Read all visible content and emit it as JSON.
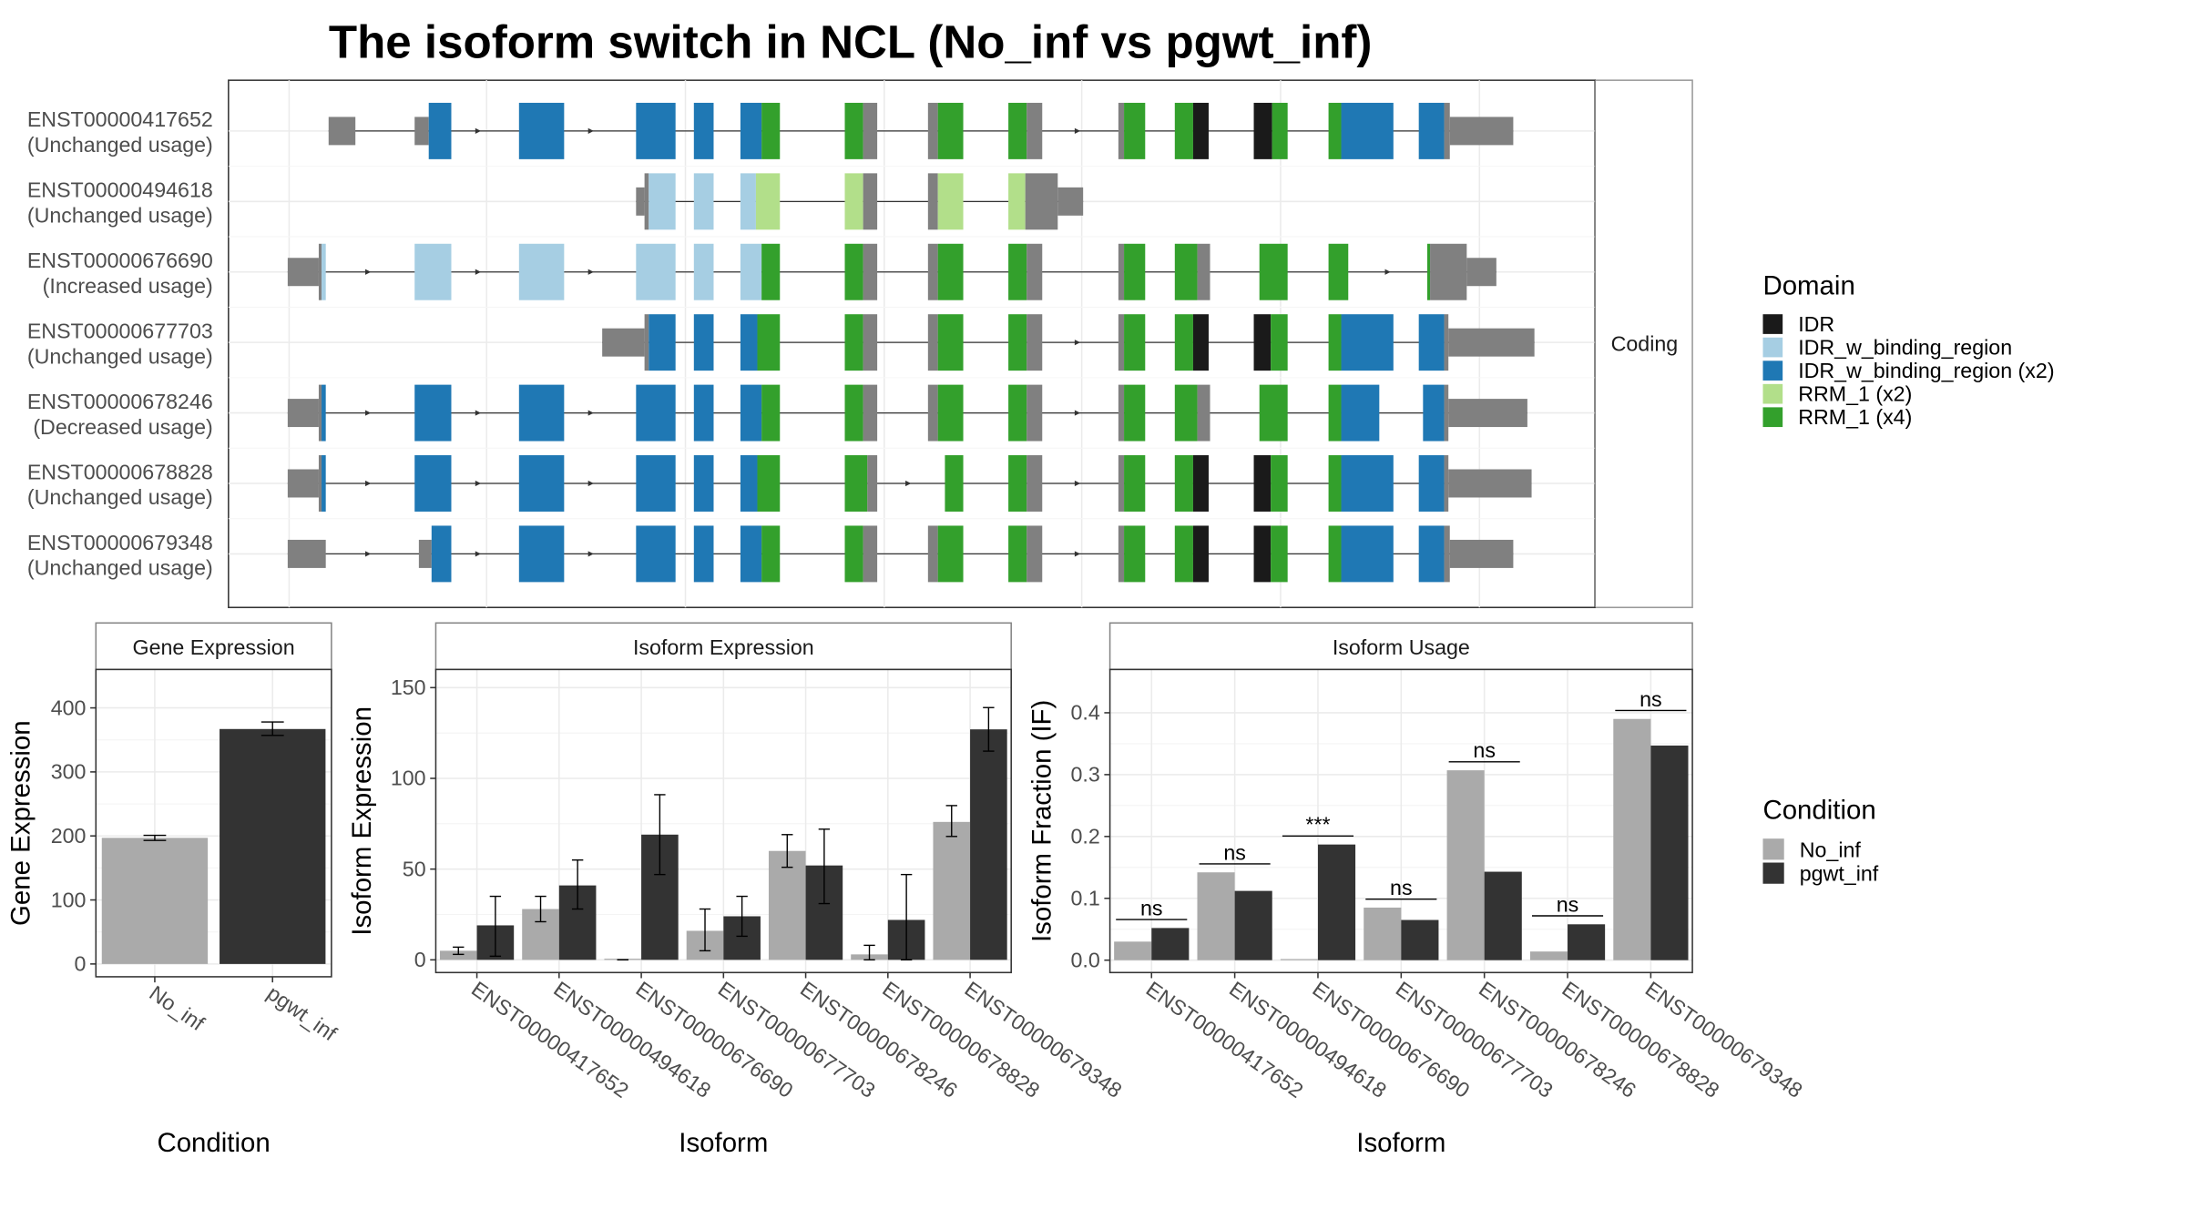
{
  "title": "The isoform switch in NCL (No_inf vs pgwt_inf)",
  "structure_panel": {
    "strip_label": "Coding",
    "isoforms": [
      {
        "id": "ENST00000417652",
        "usage": "(Unchanged usage)"
      },
      {
        "id": "ENST00000494618",
        "usage": "(Unchanged usage)"
      },
      {
        "id": "ENST00000676690",
        "usage": "(Increased usage)"
      },
      {
        "id": "ENST00000677703",
        "usage": "(Unchanged usage)"
      },
      {
        "id": "ENST00000678246",
        "usage": "(Decreased usage)"
      },
      {
        "id": "ENST00000678828",
        "usage": "(Unchanged usage)"
      },
      {
        "id": "ENST00000679348",
        "usage": "(Unchanged usage)"
      }
    ]
  },
  "domain_legend": {
    "title": "Domain",
    "items": [
      {
        "label": "IDR",
        "color": "#1a1a1a"
      },
      {
        "label": "IDR_w_binding_region",
        "color": "#a6cee3"
      },
      {
        "label": "IDR_w_binding_region (x2)",
        "color": "#1f78b4"
      },
      {
        "label": "RRM_1 (x2)",
        "color": "#b2df8a"
      },
      {
        "label": "RRM_1 (x4)",
        "color": "#33a02c"
      }
    ]
  },
  "condition_legend": {
    "title": "Condition",
    "items": [
      {
        "label": "No_inf",
        "color": "#aaaaaa"
      },
      {
        "label": "pgwt_inf",
        "color": "#333333"
      }
    ]
  },
  "chart_data": [
    {
      "type": "bar",
      "panel_title": "Gene Expression",
      "xlabel": "Condition",
      "ylabel": "Gene Expression",
      "categories": [
        "No_inf",
        "pgwt_inf"
      ],
      "values": [
        197,
        367
      ],
      "errors": [
        [
          193,
          201
        ],
        [
          357,
          378
        ]
      ],
      "colors": [
        "#aaaaaa",
        "#333333"
      ],
      "ylim": [
        -20,
        460
      ],
      "yticks": [
        0,
        100,
        200,
        300,
        400
      ]
    },
    {
      "type": "bar",
      "panel_title": "Isoform Expression",
      "xlabel": "Isoform",
      "ylabel": "Isoform Expression",
      "categories": [
        "ENST00000417652",
        "ENST00000494618",
        "ENST00000676690",
        "ENST00000677703",
        "ENST00000678246",
        "ENST00000678828",
        "ENST00000679348"
      ],
      "series": [
        {
          "name": "No_inf",
          "values": [
            5,
            28,
            0,
            16,
            60,
            3,
            76
          ],
          "errors": [
            [
              3,
              7
            ],
            [
              21,
              35
            ],
            [
              0,
              0
            ],
            [
              5,
              28
            ],
            [
              51,
              69
            ],
            [
              0,
              8
            ],
            [
              68,
              85
            ]
          ]
        },
        {
          "name": "pgwt_inf",
          "values": [
            19,
            41,
            69,
            24,
            52,
            22,
            127
          ],
          "errors": [
            [
              2,
              35
            ],
            [
              28,
              55
            ],
            [
              47,
              91
            ],
            [
              13,
              35
            ],
            [
              31,
              72
            ],
            [
              0,
              47
            ],
            [
              115,
              139
            ]
          ]
        }
      ],
      "ylim": [
        -7,
        160
      ],
      "yticks": [
        0,
        50,
        100,
        150
      ]
    },
    {
      "type": "bar",
      "panel_title": "Isoform Usage",
      "xlabel": "Isoform",
      "ylabel": "Isoform Fraction (IF)",
      "categories": [
        "ENST00000417652",
        "ENST00000494618",
        "ENST00000676690",
        "ENST00000677703",
        "ENST00000678246",
        "ENST00000678828",
        "ENST00000679348"
      ],
      "series": [
        {
          "name": "No_inf",
          "values": [
            0.03,
            0.142,
            0.0,
            0.085,
            0.307,
            0.014,
            0.39
          ]
        },
        {
          "name": "pgwt_inf",
          "values": [
            0.052,
            0.112,
            0.187,
            0.065,
            0.143,
            0.058,
            0.347
          ]
        }
      ],
      "significance": [
        "ns",
        "ns",
        "***",
        "ns",
        "ns",
        "ns",
        "ns"
      ],
      "ylim": [
        -0.02,
        0.47
      ],
      "yticks": [
        0.0,
        0.1,
        0.2,
        0.3,
        0.4
      ],
      "ytick_labels": [
        "0.0",
        "0.1",
        "0.2",
        "0.3",
        "0.4"
      ]
    }
  ]
}
